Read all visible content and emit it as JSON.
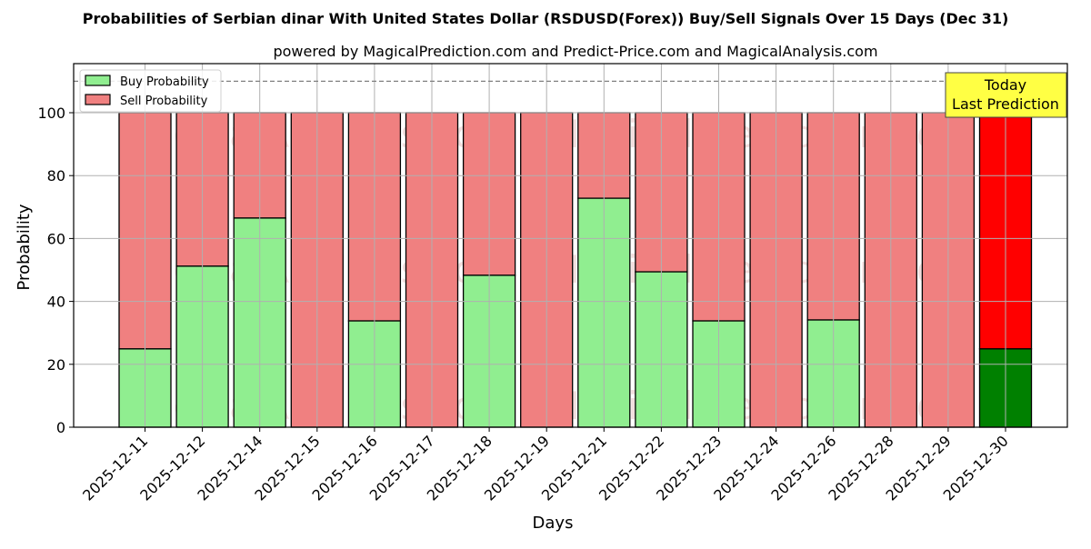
{
  "title": "Probabilities of Serbian dinar With United States Dollar (RSDUSD(Forex)) Buy/Sell Signals Over 15 Days (Dec 31)",
  "subtitle": "powered by MagicalPrediction.com and Predict-Price.com and MagicalAnalysis.com",
  "watermarks": [
    "MagicalAnalysis.com",
    "MagicalPrediction.com"
  ],
  "annotation": {
    "line1": "Today",
    "line2": "Last Prediction"
  },
  "colors": {
    "buy": "#90ee90",
    "sell": "#f08080",
    "buy_today": "#008000",
    "sell_today": "#ff0000",
    "annotation_bg": "#ffff44",
    "grid": "#b0b0b0",
    "dashed_line": "#808080"
  },
  "chart_data": {
    "type": "bar",
    "stacked": true,
    "title": "Probabilities of Serbian dinar With United States Dollar (RSDUSD(Forex)) Buy/Sell Signals Over 15 Days (Dec 31)",
    "subtitle": "powered by MagicalPrediction.com and Predict-Price.com and MagicalAnalysis.com",
    "xlabel": "Days",
    "ylabel": "Probability",
    "ylim": [
      0,
      115
    ],
    "yticks": [
      0,
      20,
      40,
      60,
      80,
      100
    ],
    "dashed_hline": 110,
    "grid": true,
    "legend_position": "upper left",
    "categories": [
      "2025-12-11",
      "2025-12-12",
      "2025-12-14",
      "2025-12-15",
      "2025-12-16",
      "2025-12-17",
      "2025-12-18",
      "2025-12-19",
      "2025-12-21",
      "2025-12-22",
      "2025-12-23",
      "2025-12-24",
      "2025-12-26",
      "2025-12-28",
      "2025-12-29",
      "2025-12-30"
    ],
    "series": [
      {
        "name": "Buy Probability",
        "values": [
          24.9,
          51.2,
          66.5,
          0,
          33.8,
          0,
          48.3,
          0,
          72.8,
          49.4,
          33.8,
          0,
          34.1,
          0,
          0,
          24.9
        ]
      },
      {
        "name": "Sell Probability",
        "values": [
          75.1,
          48.8,
          33.5,
          100,
          66.2,
          100,
          51.7,
          100,
          27.2,
          50.6,
          66.2,
          100,
          65.9,
          100,
          100,
          75.1
        ]
      }
    ],
    "highlight_last": true,
    "annotation": "Today\nLast Prediction"
  }
}
